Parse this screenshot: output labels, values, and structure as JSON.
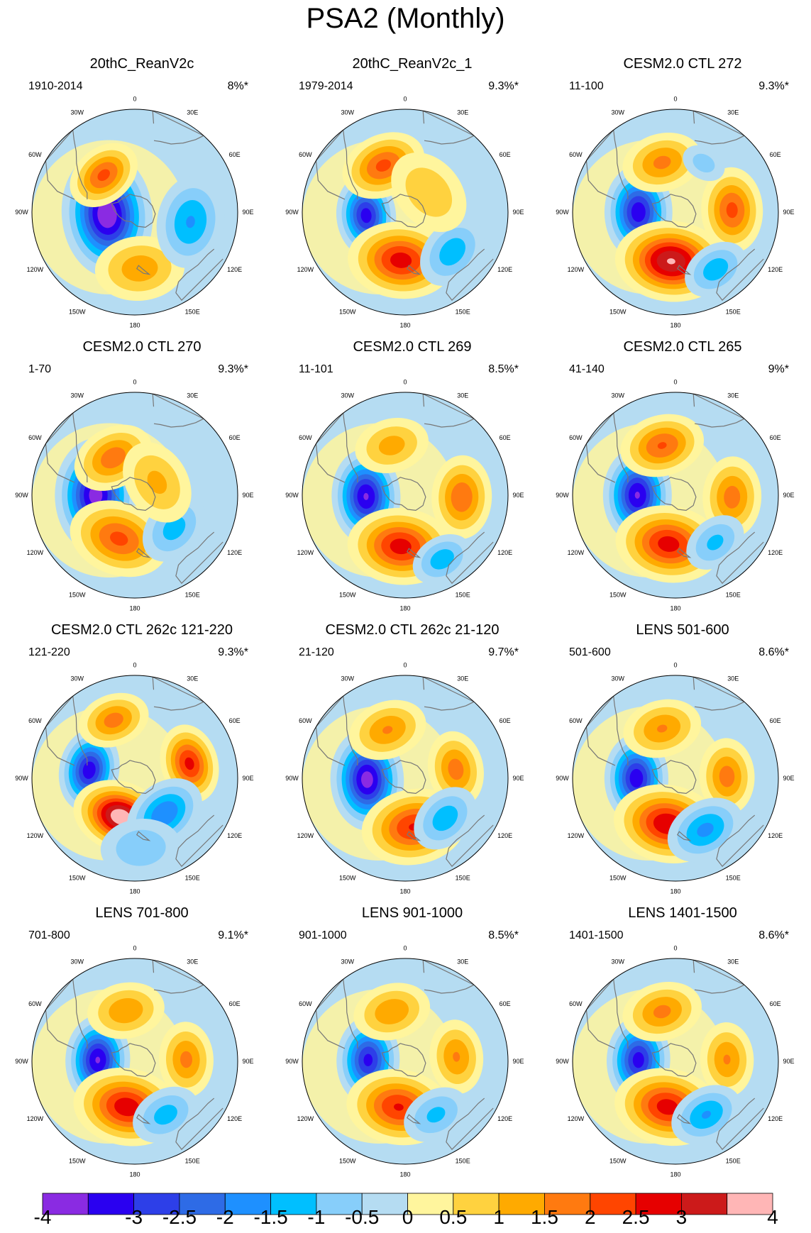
{
  "title": "PSA2 (Monthly)",
  "longitude_labels": [
    "0",
    "30E",
    "60E",
    "90E",
    "120E",
    "150E",
    "180",
    "150W",
    "120W",
    "90W",
    "60W",
    "30W"
  ],
  "panels": [
    {
      "title": "20thC_ReanV2c",
      "period": "1910-2014",
      "percent": "8%*",
      "features": [
        {
          "lon": 265,
          "r": 0.27,
          "v": -4.2,
          "s": 0.22
        },
        {
          "lon": 320,
          "r": 0.47,
          "v": 2.4,
          "s": 0.15
        },
        {
          "lon": 175,
          "r": 0.55,
          "v": 1.6,
          "s": 0.2
        },
        {
          "lon": 100,
          "r": 0.55,
          "v": -1.8,
          "s": 0.2
        }
      ]
    },
    {
      "title": "20thC_ReanV2c_1",
      "period": "1979-2014",
      "percent": "9.3%*",
      "features": [
        {
          "lon": 265,
          "r": 0.38,
          "v": -3.5,
          "s": 0.15
        },
        {
          "lon": 335,
          "r": 0.5,
          "v": 2.4,
          "s": 0.17
        },
        {
          "lon": 185,
          "r": 0.47,
          "v": 3.0,
          "s": 0.2
        },
        {
          "lon": 130,
          "r": 0.6,
          "v": -1.6,
          "s": 0.17
        },
        {
          "lon": 50,
          "r": 0.3,
          "v": 1.2,
          "s": 0.22
        }
      ]
    },
    {
      "title": "CESM2.0 CTL 272",
      "period": "11-100",
      "percent": "9.3%*",
      "features": [
        {
          "lon": 270,
          "r": 0.36,
          "v": -3.6,
          "s": 0.17
        },
        {
          "lon": 345,
          "r": 0.5,
          "v": 1.9,
          "s": 0.17
        },
        {
          "lon": 185,
          "r": 0.48,
          "v": 3.8,
          "s": 0.2
        },
        {
          "lon": 88,
          "r": 0.55,
          "v": 2.4,
          "s": 0.17
        },
        {
          "lon": 145,
          "r": 0.68,
          "v": -1.6,
          "s": 0.15
        },
        {
          "lon": 30,
          "r": 0.55,
          "v": -1.0,
          "s": 0.12
        }
      ]
    },
    {
      "title": "CESM2.0 CTL 270",
      "period": "1-70",
      "percent": "9.3%*",
      "features": [
        {
          "lon": 270,
          "r": 0.38,
          "v": -4.0,
          "s": 0.2
        },
        {
          "lon": 330,
          "r": 0.42,
          "v": 2.1,
          "s": 0.17
        },
        {
          "lon": 200,
          "r": 0.45,
          "v": 2.4,
          "s": 0.2
        },
        {
          "lon": 130,
          "r": 0.5,
          "v": -1.5,
          "s": 0.17
        },
        {
          "lon": 60,
          "r": 0.25,
          "v": 1.4,
          "s": 0.2
        }
      ]
    },
    {
      "title": "CESM2.0 CTL 269",
      "period": "11-101",
      "percent": "8.5%*",
      "features": [
        {
          "lon": 268,
          "r": 0.38,
          "v": -3.8,
          "s": 0.17
        },
        {
          "lon": 345,
          "r": 0.5,
          "v": 1.5,
          "s": 0.17
        },
        {
          "lon": 185,
          "r": 0.5,
          "v": 3.0,
          "s": 0.2
        },
        {
          "lon": 92,
          "r": 0.55,
          "v": 2.2,
          "s": 0.17
        },
        {
          "lon": 150,
          "r": 0.72,
          "v": -1.6,
          "s": 0.14
        }
      ]
    },
    {
      "title": "CESM2.0 CTL 265",
      "period": "41-140",
      "percent": "9%*",
      "features": [
        {
          "lon": 270,
          "r": 0.37,
          "v": -3.8,
          "s": 0.17
        },
        {
          "lon": 345,
          "r": 0.5,
          "v": 2.3,
          "s": 0.17
        },
        {
          "lon": 188,
          "r": 0.48,
          "v": 3.0,
          "s": 0.2
        },
        {
          "lon": 92,
          "r": 0.55,
          "v": 2.0,
          "s": 0.17
        },
        {
          "lon": 140,
          "r": 0.6,
          "v": -1.4,
          "s": 0.15
        }
      ]
    },
    {
      "title": "CESM2.0 CTL 262c 121-220",
      "period": "121-220",
      "percent": "9.3%*",
      "features": [
        {
          "lon": 280,
          "r": 0.45,
          "v": -3.6,
          "s": 0.15
        },
        {
          "lon": 340,
          "r": 0.6,
          "v": 2.0,
          "s": 0.15
        },
        {
          "lon": 200,
          "r": 0.4,
          "v": 4.2,
          "s": 0.17
        },
        {
          "lon": 75,
          "r": 0.55,
          "v": 2.9,
          "s": 0.15
        },
        {
          "lon": 140,
          "r": 0.45,
          "v": -2.2,
          "s": 0.17
        },
        {
          "lon": 175,
          "r": 0.68,
          "v": -1.2,
          "s": 0.2
        }
      ]
    },
    {
      "title": "CESM2.0 CTL 262c 21-120",
      "period": "21-120",
      "percent": "9.7%*",
      "features": [
        {
          "lon": 268,
          "r": 0.37,
          "v": -4.0,
          "s": 0.18
        },
        {
          "lon": 340,
          "r": 0.5,
          "v": 1.8,
          "s": 0.17
        },
        {
          "lon": 170,
          "r": 0.48,
          "v": 2.8,
          "s": 0.2
        },
        {
          "lon": 80,
          "r": 0.5,
          "v": 2.0,
          "s": 0.16
        },
        {
          "lon": 135,
          "r": 0.55,
          "v": -1.6,
          "s": 0.16
        }
      ]
    },
    {
      "title": "LENS 501-600",
      "period": "501-600",
      "percent": "8.6%*",
      "features": [
        {
          "lon": 270,
          "r": 0.38,
          "v": -3.6,
          "s": 0.16
        },
        {
          "lon": 345,
          "r": 0.5,
          "v": 1.8,
          "s": 0.17
        },
        {
          "lon": 190,
          "r": 0.45,
          "v": 3.2,
          "s": 0.2
        },
        {
          "lon": 88,
          "r": 0.5,
          "v": 2.0,
          "s": 0.16
        },
        {
          "lon": 150,
          "r": 0.58,
          "v": -1.9,
          "s": 0.17
        }
      ]
    },
    {
      "title": "LENS 701-800",
      "period": "701-800",
      "percent": "9.1%*",
      "features": [
        {
          "lon": 272,
          "r": 0.36,
          "v": -3.8,
          "s": 0.16
        },
        {
          "lon": 350,
          "r": 0.5,
          "v": 1.7,
          "s": 0.17
        },
        {
          "lon": 190,
          "r": 0.45,
          "v": 3.1,
          "s": 0.2
        },
        {
          "lon": 88,
          "r": 0.5,
          "v": 1.9,
          "s": 0.16
        },
        {
          "lon": 150,
          "r": 0.6,
          "v": -1.5,
          "s": 0.16
        }
      ]
    },
    {
      "title": "LENS 901-1000",
      "period": "901-1000",
      "percent": "8.5%*",
      "features": [
        {
          "lon": 272,
          "r": 0.36,
          "v": -3.4,
          "s": 0.16
        },
        {
          "lon": 345,
          "r": 0.5,
          "v": 1.7,
          "s": 0.17
        },
        {
          "lon": 188,
          "r": 0.45,
          "v": 2.8,
          "s": 0.2
        },
        {
          "lon": 85,
          "r": 0.5,
          "v": 1.8,
          "s": 0.16
        },
        {
          "lon": 150,
          "r": 0.6,
          "v": -1.4,
          "s": 0.16
        }
      ]
    },
    {
      "title": "LENS 1401-1500",
      "period": "1401-1500",
      "percent": "8.6%*",
      "features": [
        {
          "lon": 272,
          "r": 0.36,
          "v": -3.5,
          "s": 0.16
        },
        {
          "lon": 345,
          "r": 0.5,
          "v": 1.9,
          "s": 0.17
        },
        {
          "lon": 190,
          "r": 0.45,
          "v": 3.0,
          "s": 0.2
        },
        {
          "lon": 88,
          "r": 0.5,
          "v": 1.8,
          "s": 0.16
        },
        {
          "lon": 150,
          "r": 0.6,
          "v": -1.8,
          "s": 0.16
        }
      ]
    }
  ],
  "colorbar": {
    "levels": [
      -4,
      -3.5,
      -3,
      -2.5,
      -2,
      -1.5,
      -1,
      -0.5,
      0,
      0.5,
      1,
      1.5,
      2,
      2.5,
      3,
      3.5,
      4
    ],
    "labels": [
      "-4",
      "-3",
      "-2.5",
      "-2",
      "-1.5",
      "-1",
      "-0.5",
      "0",
      "0.5",
      "1",
      "1.5",
      "2",
      "2.5",
      "3",
      "4"
    ],
    "colors": [
      "#8a2be2",
      "#2a00f0",
      "#2d3fe8",
      "#2e6be6",
      "#1e90ff",
      "#00bfff",
      "#87cefa",
      "#b5dcf2",
      "#fff59d",
      "#ffd23f",
      "#ffaa00",
      "#ff7a10",
      "#ff4500",
      "#e60000",
      "#cc1a1a",
      "#ffb6b6"
    ]
  },
  "map_style": {
    "coast_color": "#777777",
    "border_color": "#000000"
  }
}
